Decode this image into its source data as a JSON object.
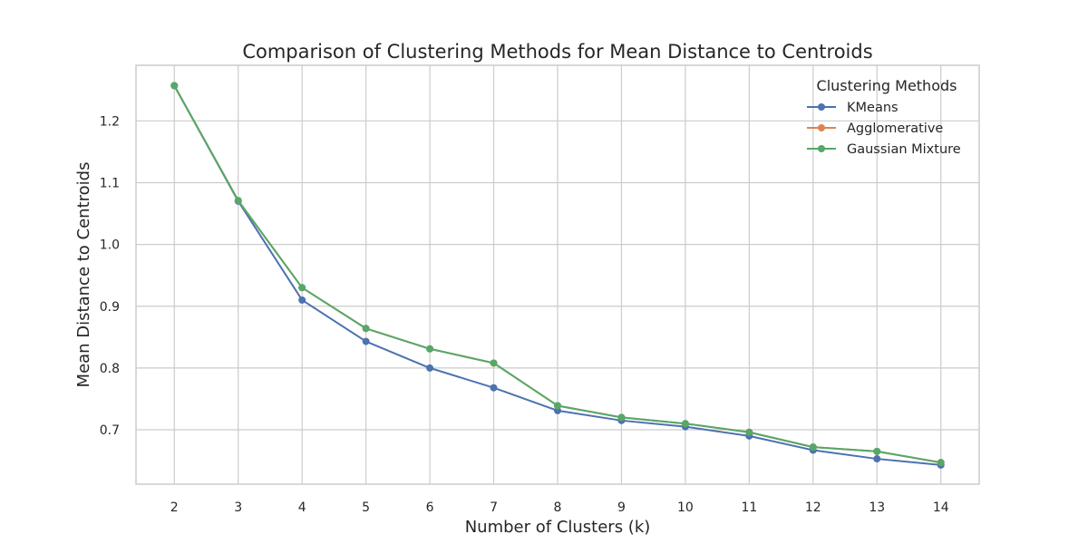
{
  "chart_data": {
    "type": "line",
    "title": "Comparison of Clustering Methods for Mean Distance to Centroids",
    "xlabel": "Number of Clusters (k)",
    "ylabel": "Mean Distance to Centroids",
    "x": [
      2,
      3,
      4,
      5,
      6,
      7,
      8,
      9,
      10,
      11,
      12,
      13,
      14
    ],
    "xlim": [
      1.4,
      14.6
    ],
    "ylim": [
      0.612,
      1.29
    ],
    "yticks": [
      0.7,
      0.8,
      0.9,
      1.0,
      1.1,
      1.2
    ],
    "ytick_labels": [
      "0.7",
      "0.8",
      "0.9",
      "1.0",
      "1.1",
      "1.2"
    ],
    "grid": true,
    "legend": {
      "title": "Clustering Methods",
      "placement": "top-right"
    },
    "series": [
      {
        "name": "KMeans",
        "color": "#4c72b0",
        "values": [
          1.257,
          1.07,
          0.91,
          0.843,
          0.8,
          0.768,
          0.731,
          0.715,
          0.705,
          0.69,
          0.667,
          0.653,
          0.643
        ]
      },
      {
        "name": "Agglomerative",
        "color": "#dd8452",
        "values": [
          1.257,
          1.071,
          0.93,
          0.864,
          0.831,
          0.808,
          0.739,
          0.72,
          0.71,
          0.696,
          0.672,
          0.665,
          0.647
        ]
      },
      {
        "name": "Gaussian Mixture",
        "color": "#55a868",
        "values": [
          1.257,
          1.071,
          0.93,
          0.864,
          0.831,
          0.808,
          0.739,
          0.72,
          0.71,
          0.696,
          0.672,
          0.665,
          0.647
        ]
      }
    ]
  }
}
